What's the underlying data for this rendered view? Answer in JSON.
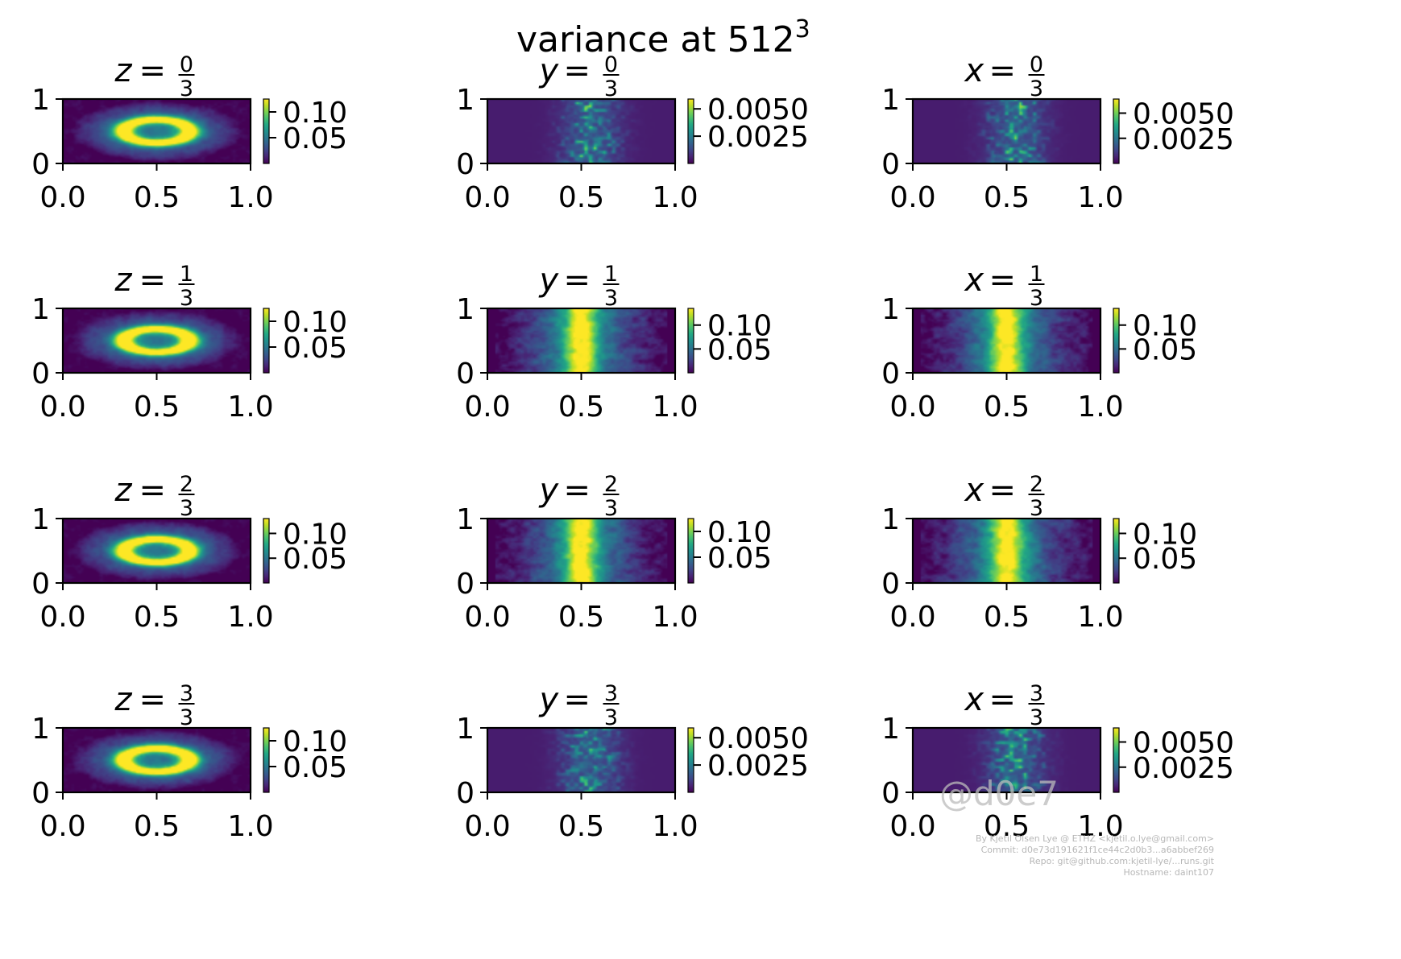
{
  "figure_title": {
    "base": "variance at 512",
    "exponent": "3"
  },
  "watermark": {
    "handle": "@d0e7",
    "lines": [
      "By Kjetil Olsen Lye @ ETHZ <kjetil.o.lye@gmail.com>",
      "Commit: d0e73d191621f1ce44c2d0b3...a6abbef269",
      "Repo: git@github.com:kjetil-lye/...runs.git",
      "Hostname: daint107"
    ]
  },
  "colormap": "viridis",
  "colors": {
    "viridis_low": "#440154",
    "viridis_mid": "#21918c",
    "viridis_high": "#fde725",
    "axis": "#000000",
    "watermark": "#bbbbbb"
  },
  "chart_data": [
    {
      "type": "heatmap",
      "slice_axis": "z",
      "numerator": "0",
      "denominator": "3",
      "pattern": "ring",
      "xlim": [
        0,
        1
      ],
      "ylim": [
        0,
        1
      ],
      "x_ticks": [
        "0.0",
        "0.5",
        "1.0"
      ],
      "y_ticks": [
        "0",
        "1"
      ],
      "colorbar_ticks": [
        "0.10",
        "0.05"
      ],
      "colorbar_values": [
        0.1,
        0.05
      ],
      "colorbar_range": [
        0,
        0.125
      ]
    },
    {
      "type": "heatmap",
      "slice_axis": "y",
      "numerator": "0",
      "denominator": "3",
      "pattern": "sparse",
      "xlim": [
        0,
        1
      ],
      "ylim": [
        0,
        1
      ],
      "x_ticks": [
        "0.0",
        "0.5",
        "1.0"
      ],
      "y_ticks": [
        "0",
        "1"
      ],
      "colorbar_ticks": [
        "0.0050",
        "0.0025"
      ],
      "colorbar_values": [
        0.005,
        0.0025
      ],
      "colorbar_range": [
        0,
        0.0059
      ]
    },
    {
      "type": "heatmap",
      "slice_axis": "x",
      "numerator": "0",
      "denominator": "3",
      "pattern": "sparse",
      "xlim": [
        0,
        1
      ],
      "ylim": [
        0,
        1
      ],
      "x_ticks": [
        "0.0",
        "0.5",
        "1.0"
      ],
      "y_ticks": [
        "0",
        "1"
      ],
      "colorbar_ticks": [
        "0.0050",
        "0.0025"
      ],
      "colorbar_values": [
        0.005,
        0.0025
      ],
      "colorbar_range": [
        0,
        0.0064
      ]
    },
    {
      "type": "heatmap",
      "slice_axis": "z",
      "numerator": "1",
      "denominator": "3",
      "pattern": "ring",
      "xlim": [
        0,
        1
      ],
      "ylim": [
        0,
        1
      ],
      "x_ticks": [
        "0.0",
        "0.5",
        "1.0"
      ],
      "y_ticks": [
        "0",
        "1"
      ],
      "colorbar_ticks": [
        "0.10",
        "0.05"
      ],
      "colorbar_values": [
        0.1,
        0.05
      ],
      "colorbar_range": [
        0,
        0.125
      ]
    },
    {
      "type": "heatmap",
      "slice_axis": "y",
      "numerator": "1",
      "denominator": "3",
      "pattern": "band",
      "xlim": [
        0,
        1
      ],
      "ylim": [
        0,
        1
      ],
      "x_ticks": [
        "0.0",
        "0.5",
        "1.0"
      ],
      "y_ticks": [
        "0",
        "1"
      ],
      "colorbar_ticks": [
        "0.10",
        "0.05"
      ],
      "colorbar_values": [
        0.1,
        0.05
      ],
      "colorbar_range": [
        0,
        0.135
      ]
    },
    {
      "type": "heatmap",
      "slice_axis": "x",
      "numerator": "1",
      "denominator": "3",
      "pattern": "band",
      "xlim": [
        0,
        1
      ],
      "ylim": [
        0,
        1
      ],
      "x_ticks": [
        "0.0",
        "0.5",
        "1.0"
      ],
      "y_ticks": [
        "0",
        "1"
      ],
      "colorbar_ticks": [
        "0.10",
        "0.05"
      ],
      "colorbar_values": [
        0.1,
        0.05
      ],
      "colorbar_range": [
        0,
        0.135
      ]
    },
    {
      "type": "heatmap",
      "slice_axis": "z",
      "numerator": "2",
      "denominator": "3",
      "pattern": "ring",
      "xlim": [
        0,
        1
      ],
      "ylim": [
        0,
        1
      ],
      "x_ticks": [
        "0.0",
        "0.5",
        "1.0"
      ],
      "y_ticks": [
        "0",
        "1"
      ],
      "colorbar_ticks": [
        "0.10",
        "0.05"
      ],
      "colorbar_values": [
        0.1,
        0.05
      ],
      "colorbar_range": [
        0,
        0.13
      ]
    },
    {
      "type": "heatmap",
      "slice_axis": "y",
      "numerator": "2",
      "denominator": "3",
      "pattern": "band",
      "xlim": [
        0,
        1
      ],
      "ylim": [
        0,
        1
      ],
      "x_ticks": [
        "0.0",
        "0.5",
        "1.0"
      ],
      "y_ticks": [
        "0",
        "1"
      ],
      "colorbar_ticks": [
        "0.10",
        "0.05"
      ],
      "colorbar_values": [
        0.1,
        0.05
      ],
      "colorbar_range": [
        0,
        0.125
      ]
    },
    {
      "type": "heatmap",
      "slice_axis": "x",
      "numerator": "2",
      "denominator": "3",
      "pattern": "band",
      "xlim": [
        0,
        1
      ],
      "ylim": [
        0,
        1
      ],
      "x_ticks": [
        "0.0",
        "0.5",
        "1.0"
      ],
      "y_ticks": [
        "0",
        "1"
      ],
      "colorbar_ticks": [
        "0.10",
        "0.05"
      ],
      "colorbar_values": [
        0.1,
        0.05
      ],
      "colorbar_range": [
        0,
        0.13
      ]
    },
    {
      "type": "heatmap",
      "slice_axis": "z",
      "numerator": "3",
      "denominator": "3",
      "pattern": "ring",
      "xlim": [
        0,
        1
      ],
      "ylim": [
        0,
        1
      ],
      "x_ticks": [
        "0.0",
        "0.5",
        "1.0"
      ],
      "y_ticks": [
        "0",
        "1"
      ],
      "colorbar_ticks": [
        "0.10",
        "0.05"
      ],
      "colorbar_values": [
        0.1,
        0.05
      ],
      "colorbar_range": [
        0,
        0.125
      ]
    },
    {
      "type": "heatmap",
      "slice_axis": "y",
      "numerator": "3",
      "denominator": "3",
      "pattern": "sparse",
      "xlim": [
        0,
        1
      ],
      "ylim": [
        0,
        1
      ],
      "x_ticks": [
        "0.0",
        "0.5",
        "1.0"
      ],
      "y_ticks": [
        "0",
        "1"
      ],
      "colorbar_ticks": [
        "0.0050",
        "0.0025"
      ],
      "colorbar_values": [
        0.005,
        0.0025
      ],
      "colorbar_range": [
        0,
        0.0059
      ]
    },
    {
      "type": "heatmap",
      "slice_axis": "x",
      "numerator": "3",
      "denominator": "3",
      "pattern": "sparse",
      "xlim": [
        0,
        1
      ],
      "ylim": [
        0,
        1
      ],
      "x_ticks": [
        "0.0",
        "0.5",
        "1.0"
      ],
      "y_ticks": [
        "0",
        "1"
      ],
      "colorbar_ticks": [
        "0.0050",
        "0.0025"
      ],
      "colorbar_values": [
        0.005,
        0.0025
      ],
      "colorbar_range": [
        0,
        0.0064
      ]
    }
  ]
}
